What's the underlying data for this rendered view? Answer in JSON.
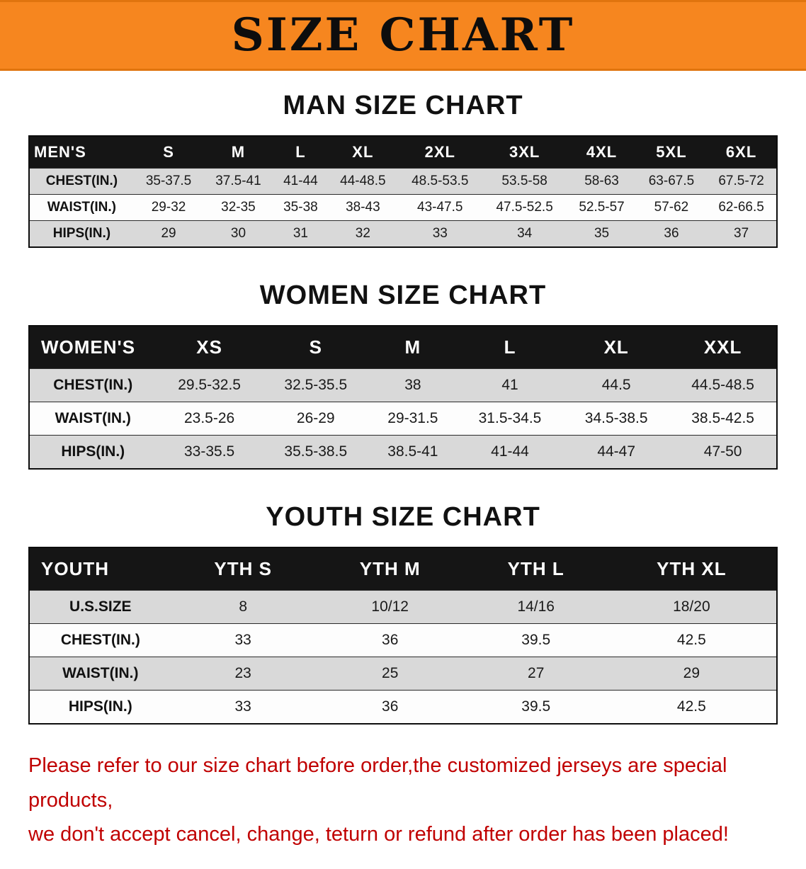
{
  "banner": {
    "title": "SIZE CHART"
  },
  "colors": {
    "banner_bg": "#F6861F",
    "header_bg": "#151515",
    "header_text": "#FFFFFF",
    "row_alt_bg": "#D9D9D9",
    "row_bg": "#FDFDFD",
    "disclaimer_red": "#C00000",
    "heading_text": "#111111"
  },
  "sections": [
    {
      "heading": "MAN SIZE CHART",
      "table": {
        "header": [
          "MEN'S",
          "S",
          "M",
          "L",
          "XL",
          "2XL",
          "3XL",
          "4XL",
          "5XL",
          "6XL"
        ],
        "rows": [
          [
            "CHEST(IN.)",
            "35-37.5",
            "37.5-41",
            "41-44",
            "44-48.5",
            "48.5-53.5",
            "53.5-58",
            "58-63",
            "63-67.5",
            "67.5-72"
          ],
          [
            "WAIST(IN.)",
            "29-32",
            "32-35",
            "35-38",
            "38-43",
            "43-47.5",
            "47.5-52.5",
            "52.5-57",
            "57-62",
            "62-66.5"
          ],
          [
            "HIPS(IN.)",
            "29",
            "30",
            "31",
            "32",
            "33",
            "34",
            "35",
            "36",
            "37"
          ]
        ]
      }
    },
    {
      "heading": "WOMEN SIZE CHART",
      "table": {
        "header": [
          "WOMEN'S",
          "XS",
          "S",
          "M",
          "L",
          "XL",
          "XXL"
        ],
        "rows": [
          [
            "CHEST(IN.)",
            "29.5-32.5",
            "32.5-35.5",
            "38",
            "41",
            "44.5",
            "44.5-48.5"
          ],
          [
            "WAIST(IN.)",
            "23.5-26",
            "26-29",
            "29-31.5",
            "31.5-34.5",
            "34.5-38.5",
            "38.5-42.5"
          ],
          [
            "HIPS(IN.)",
            "33-35.5",
            "35.5-38.5",
            "38.5-41",
            "41-44",
            "44-47",
            "47-50"
          ]
        ]
      }
    },
    {
      "heading": "YOUTH SIZE CHART",
      "table": {
        "header": [
          "YOUTH",
          "YTH S",
          "YTH M",
          "YTH L",
          "YTH XL"
        ],
        "rows": [
          [
            "U.S.SIZE",
            "8",
            "10/12",
            "14/16",
            "18/20"
          ],
          [
            "CHEST(IN.)",
            "33",
            "36",
            "39.5",
            "42.5"
          ],
          [
            "WAIST(IN.)",
            "23",
            "25",
            "27",
            "29"
          ],
          [
            "HIPS(IN.)",
            "33",
            "36",
            "39.5",
            "42.5"
          ]
        ]
      }
    }
  ],
  "footer": {
    "line1": "Please refer to our size chart before order,the customized jerseys are special products,",
    "line2": "we don't accept cancel, change, teturn or refund after order has been placed!"
  }
}
